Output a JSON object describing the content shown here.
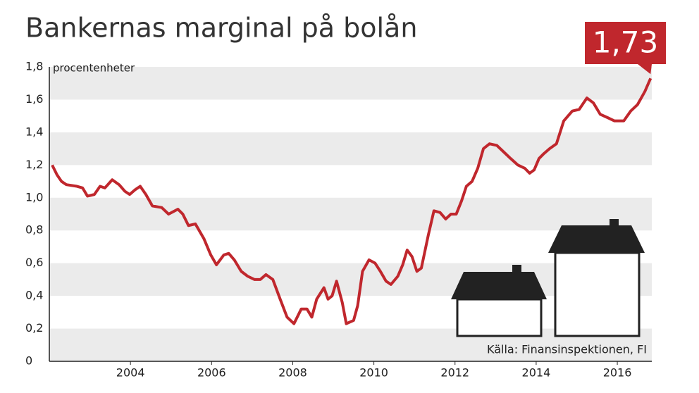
{
  "chart_data": {
    "type": "line",
    "title": "Bankernas marginal på bolån",
    "y_label": "procentenheter",
    "source": "Källa: Finansinspektionen, FI",
    "callout": {
      "value": 1.73,
      "label": "1,73"
    },
    "color": "#c0272d",
    "x": [
      2002.07,
      2002.19,
      2002.3,
      2002.42,
      2002.68,
      2002.82,
      2002.94,
      2003.11,
      2003.25,
      2003.37,
      2003.55,
      2003.72,
      2003.86,
      2003.98,
      2004.12,
      2004.24,
      2004.38,
      2004.54,
      2004.77,
      2004.94,
      2005.17,
      2005.29,
      2005.43,
      2005.6,
      2005.81,
      2005.98,
      2006.12,
      2006.3,
      2006.42,
      2006.56,
      2006.73,
      2006.89,
      2007.06,
      2007.2,
      2007.34,
      2007.51,
      2007.69,
      2007.86,
      2008.03,
      2008.21,
      2008.35,
      2008.47,
      2008.59,
      2008.77,
      2008.87,
      2008.97,
      2009.08,
      2009.22,
      2009.32,
      2009.5,
      2009.6,
      2009.72,
      2009.88,
      2010.03,
      2010.16,
      2010.3,
      2010.42,
      2010.59,
      2010.71,
      2010.82,
      2010.94,
      2011.06,
      2011.17,
      2011.34,
      2011.48,
      2011.63,
      2011.77,
      2011.9,
      2012.03,
      2012.16,
      2012.28,
      2012.42,
      2012.56,
      2012.7,
      2012.85,
      2013.03,
      2013.2,
      2013.37,
      2013.55,
      2013.72,
      2013.84,
      2013.95,
      2014.07,
      2014.19,
      2014.33,
      2014.5,
      2014.68,
      2014.89,
      2015.06,
      2015.25,
      2015.41,
      2015.58,
      2015.76,
      2015.93,
      2016.16,
      2016.33,
      2016.5,
      2016.68,
      2016.82
    ],
    "values": [
      1.2,
      1.14,
      1.1,
      1.08,
      1.07,
      1.06,
      1.01,
      1.02,
      1.07,
      1.06,
      1.11,
      1.08,
      1.04,
      1.02,
      1.05,
      1.07,
      1.02,
      0.95,
      0.94,
      0.9,
      0.93,
      0.9,
      0.83,
      0.84,
      0.75,
      0.65,
      0.59,
      0.65,
      0.66,
      0.62,
      0.55,
      0.52,
      0.5,
      0.5,
      0.53,
      0.5,
      0.38,
      0.27,
      0.23,
      0.32,
      0.32,
      0.27,
      0.38,
      0.45,
      0.38,
      0.4,
      0.49,
      0.36,
      0.23,
      0.25,
      0.34,
      0.55,
      0.62,
      0.6,
      0.55,
      0.49,
      0.47,
      0.52,
      0.59,
      0.68,
      0.64,
      0.55,
      0.57,
      0.77,
      0.92,
      0.91,
      0.87,
      0.9,
      0.9,
      0.98,
      1.07,
      1.1,
      1.18,
      1.3,
      1.33,
      1.32,
      1.28,
      1.24,
      1.2,
      1.18,
      1.15,
      1.17,
      1.24,
      1.27,
      1.3,
      1.33,
      1.47,
      1.53,
      1.54,
      1.61,
      1.58,
      1.51,
      1.49,
      1.47,
      1.47,
      1.53,
      1.57,
      1.65,
      1.73
    ],
    "xlim": [
      2002,
      2016.85
    ],
    "xticks": [
      2004,
      2006,
      2008,
      2010,
      2012,
      2014,
      2016
    ],
    "ylim": [
      0,
      1.8
    ],
    "yticks": [
      0,
      {
        "value": 0.2,
        "label": "0,2"
      },
      {
        "value": 0.4,
        "label": "0,4"
      },
      {
        "value": 0.6,
        "label": "0,6"
      },
      {
        "value": 0.8,
        "label": "0,8"
      },
      {
        "value": 1,
        "label": "1,0"
      },
      {
        "value": 1.2,
        "label": "1,2"
      },
      {
        "value": 1.4,
        "label": "1,4"
      },
      {
        "value": 1.6,
        "label": "1,6"
      },
      {
        "value": 1.8,
        "label": "1,8"
      }
    ],
    "grid": "bands"
  }
}
